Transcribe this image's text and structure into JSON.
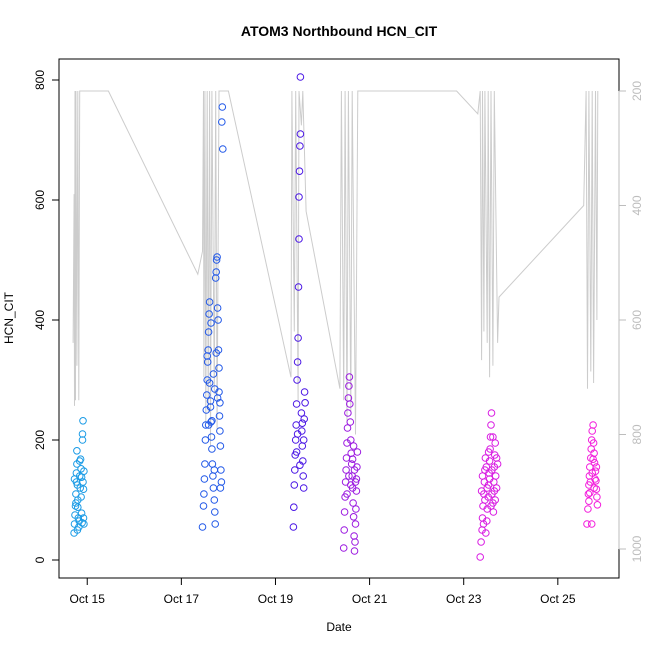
{
  "chart_data": {
    "type": "scatter",
    "title": "ATOM3 Northbound HCN_CIT",
    "xlabel": "Date",
    "ylabel": "HCN_CIT",
    "x_unit": "day-of-October-2017",
    "xlim": [
      14.4,
      26.3
    ],
    "ylim": [
      0,
      800
    ],
    "x_ticks": [
      15,
      17,
      19,
      21,
      23,
      25
    ],
    "x_tick_labels": [
      "Oct 15",
      "Oct 17",
      "Oct 19",
      "Oct 21",
      "Oct 23",
      "Oct 25"
    ],
    "y_ticks": [
      0,
      200,
      400,
      600,
      800
    ],
    "y_tick_labels": [
      "0",
      "200",
      "400",
      "600",
      "800"
    ],
    "y2_ticks": [
      200,
      400,
      600,
      800,
      1000
    ],
    "y2_tick_labels": [
      "200",
      "400",
      "600",
      "800",
      "1000"
    ],
    "y2_reversed": true,
    "y2_axis_color": "#bdbdbd",
    "grid": false,
    "point_style": "open-circle",
    "series": [
      {
        "color": "#1a9be6",
        "points": [
          [
            14.72,
            45
          ],
          [
            14.73,
            60
          ],
          [
            14.74,
            75
          ],
          [
            14.75,
            90
          ],
          [
            14.76,
            110
          ],
          [
            14.77,
            130
          ],
          [
            14.77,
            145
          ],
          [
            14.78,
            160
          ],
          [
            14.78,
            182
          ],
          [
            14.79,
            125
          ],
          [
            14.8,
            100
          ],
          [
            14.8,
            88
          ],
          [
            14.81,
            70
          ],
          [
            14.82,
            55
          ],
          [
            14.83,
            65
          ],
          [
            14.84,
            140
          ],
          [
            14.85,
            120
          ],
          [
            14.86,
            168
          ],
          [
            14.87,
            152
          ],
          [
            14.88,
            138
          ],
          [
            14.88,
            78
          ],
          [
            14.89,
            62
          ],
          [
            14.9,
            200
          ],
          [
            14.9,
            210
          ],
          [
            14.91,
            232
          ],
          [
            14.91,
            130
          ],
          [
            14.92,
            118
          ],
          [
            14.92,
            70
          ],
          [
            14.93,
            60
          ],
          [
            14.93,
            148
          ],
          [
            14.73,
            135
          ],
          [
            14.76,
            95
          ],
          [
            14.79,
            50
          ],
          [
            14.84,
            165
          ],
          [
            14.87,
            105
          ]
        ]
      },
      {
        "color": "#2158e8",
        "points": [
          [
            17.45,
            55
          ],
          [
            17.47,
            90
          ],
          [
            17.48,
            110
          ],
          [
            17.49,
            135
          ],
          [
            17.5,
            160
          ],
          [
            17.51,
            200
          ],
          [
            17.52,
            225
          ],
          [
            17.53,
            250
          ],
          [
            17.54,
            275
          ],
          [
            17.55,
            300
          ],
          [
            17.56,
            330
          ],
          [
            17.57,
            350
          ],
          [
            17.58,
            380
          ],
          [
            17.59,
            410
          ],
          [
            17.6,
            430
          ],
          [
            17.62,
            255
          ],
          [
            17.63,
            230
          ],
          [
            17.64,
            205
          ],
          [
            17.65,
            185
          ],
          [
            17.66,
            160
          ],
          [
            17.67,
            140
          ],
          [
            17.68,
            120
          ],
          [
            17.7,
            100
          ],
          [
            17.71,
            80
          ],
          [
            17.72,
            60
          ],
          [
            17.73,
            470
          ],
          [
            17.74,
            480
          ],
          [
            17.75,
            500
          ],
          [
            17.76,
            505
          ],
          [
            17.77,
            420
          ],
          [
            17.78,
            400
          ],
          [
            17.79,
            350
          ],
          [
            17.8,
            320
          ],
          [
            17.8,
            280
          ],
          [
            17.81,
            240
          ],
          [
            17.82,
            215
          ],
          [
            17.83,
            190
          ],
          [
            17.84,
            150
          ],
          [
            17.85,
            130
          ],
          [
            17.86,
            730
          ],
          [
            17.87,
            755
          ],
          [
            17.88,
            685
          ],
          [
            17.6,
            295
          ],
          [
            17.62,
            265
          ],
          [
            17.65,
            232
          ],
          [
            17.68,
            310
          ],
          [
            17.71,
            285
          ],
          [
            17.74,
            345
          ],
          [
            17.77,
            270
          ],
          [
            17.82,
            262
          ],
          [
            17.55,
            340
          ],
          [
            17.58,
            225
          ],
          [
            17.63,
            395
          ],
          [
            17.7,
            150
          ],
          [
            17.83,
            120
          ]
        ]
      },
      {
        "color": "#4a16e5",
        "points": [
          [
            19.38,
            55
          ],
          [
            19.39,
            88
          ],
          [
            19.4,
            125
          ],
          [
            19.41,
            150
          ],
          [
            19.42,
            175
          ],
          [
            19.43,
            200
          ],
          [
            19.44,
            225
          ],
          [
            19.45,
            260
          ],
          [
            19.46,
            300
          ],
          [
            19.47,
            330
          ],
          [
            19.48,
            370
          ],
          [
            19.49,
            455
          ],
          [
            19.5,
            535
          ],
          [
            19.5,
            605
          ],
          [
            19.51,
            648
          ],
          [
            19.52,
            690
          ],
          [
            19.53,
            710
          ],
          [
            19.53,
            805
          ],
          [
            19.55,
            245
          ],
          [
            19.56,
            215
          ],
          [
            19.57,
            190
          ],
          [
            19.58,
            165
          ],
          [
            19.59,
            140
          ],
          [
            19.6,
            120
          ],
          [
            19.61,
            235
          ],
          [
            19.62,
            280
          ],
          [
            19.63,
            262
          ],
          [
            19.45,
            180
          ],
          [
            19.47,
            210
          ],
          [
            19.52,
            158
          ],
          [
            19.57,
            228
          ],
          [
            19.6,
            200
          ]
        ]
      },
      {
        "color": "#9b19e0",
        "points": [
          [
            20.45,
            20
          ],
          [
            20.46,
            50
          ],
          [
            20.47,
            80
          ],
          [
            20.48,
            105
          ],
          [
            20.49,
            130
          ],
          [
            20.5,
            150
          ],
          [
            20.51,
            170
          ],
          [
            20.52,
            195
          ],
          [
            20.53,
            220
          ],
          [
            20.54,
            245
          ],
          [
            20.55,
            270
          ],
          [
            20.56,
            290
          ],
          [
            20.57,
            305
          ],
          [
            20.58,
            260
          ],
          [
            20.59,
            230
          ],
          [
            20.6,
            200
          ],
          [
            20.61,
            178
          ],
          [
            20.62,
            160
          ],
          [
            20.63,
            140
          ],
          [
            20.64,
            120
          ],
          [
            20.65,
            95
          ],
          [
            20.66,
            72
          ],
          [
            20.67,
            40
          ],
          [
            20.68,
            15
          ],
          [
            20.69,
            30
          ],
          [
            20.7,
            60
          ],
          [
            20.71,
            85
          ],
          [
            20.72,
            135
          ],
          [
            20.73,
            155
          ],
          [
            20.74,
            180
          ],
          [
            20.52,
            110
          ],
          [
            20.56,
            140
          ],
          [
            20.6,
            125
          ],
          [
            20.64,
            168
          ],
          [
            20.68,
            150
          ],
          [
            20.7,
            130
          ],
          [
            20.72,
            115
          ],
          [
            20.66,
            190
          ]
        ]
      },
      {
        "color": "#d81ae2",
        "points": [
          [
            23.35,
            5
          ],
          [
            23.37,
            30
          ],
          [
            23.39,
            50
          ],
          [
            23.4,
            70
          ],
          [
            23.41,
            90
          ],
          [
            23.43,
            110
          ],
          [
            23.44,
            130
          ],
          [
            23.45,
            150
          ],
          [
            23.46,
            170
          ],
          [
            23.47,
            45
          ],
          [
            23.49,
            65
          ],
          [
            23.5,
            85
          ],
          [
            23.52,
            105
          ],
          [
            23.53,
            125
          ],
          [
            23.54,
            145
          ],
          [
            23.55,
            165
          ],
          [
            23.56,
            185
          ],
          [
            23.57,
            205
          ],
          [
            23.58,
            225
          ],
          [
            23.59,
            245
          ],
          [
            23.6,
            110
          ],
          [
            23.62,
            95
          ],
          [
            23.63,
            80
          ],
          [
            23.64,
            130
          ],
          [
            23.65,
            155
          ],
          [
            23.66,
            175
          ],
          [
            23.67,
            195
          ],
          [
            23.68,
            140
          ],
          [
            23.7,
            120
          ],
          [
            23.72,
            160
          ],
          [
            23.4,
            140
          ],
          [
            23.45,
            100
          ],
          [
            23.5,
            120
          ],
          [
            23.55,
            135
          ],
          [
            23.6,
            150
          ],
          [
            23.65,
            115
          ],
          [
            23.7,
            170
          ],
          [
            23.42,
            60
          ],
          [
            23.48,
            155
          ],
          [
            23.58,
            90
          ],
          [
            23.62,
            205
          ],
          [
            23.38,
            115
          ],
          [
            23.53,
            180
          ],
          [
            23.67,
            100
          ]
        ]
      },
      {
        "color": "#f31ddc",
        "points": [
          [
            25.62,
            60
          ],
          [
            25.64,
            85
          ],
          [
            25.65,
            110
          ],
          [
            25.66,
            125
          ],
          [
            25.67,
            140
          ],
          [
            25.68,
            155
          ],
          [
            25.7,
            170
          ],
          [
            25.71,
            185
          ],
          [
            25.72,
            200
          ],
          [
            25.73,
            215
          ],
          [
            25.75,
            225
          ],
          [
            25.76,
            195
          ],
          [
            25.77,
            178
          ],
          [
            25.78,
            162
          ],
          [
            25.8,
            148
          ],
          [
            25.81,
            132
          ],
          [
            25.82,
            118
          ],
          [
            25.83,
            105
          ],
          [
            25.84,
            92
          ],
          [
            25.69,
            130
          ],
          [
            25.73,
            145
          ],
          [
            25.77,
            120
          ],
          [
            25.79,
            135
          ],
          [
            25.66,
            98
          ],
          [
            25.72,
            60
          ],
          [
            25.82,
            155
          ],
          [
            25.68,
            112
          ],
          [
            25.75,
            168
          ]
        ]
      }
    ],
    "altitude_trace": {
      "color": "#cccccc",
      "points": [
        [
          14.7,
          640
        ],
        [
          14.72,
          380
        ],
        [
          14.73,
          750
        ],
        [
          14.74,
          200
        ],
        [
          14.75,
          740
        ],
        [
          14.76,
          200
        ],
        [
          14.78,
          680
        ],
        [
          14.8,
          200
        ],
        [
          14.82,
          740
        ],
        [
          14.84,
          200
        ],
        [
          14.9,
          200
        ],
        [
          15.45,
          200
        ],
        [
          17.35,
          520
        ],
        [
          17.45,
          480
        ],
        [
          17.47,
          200
        ],
        [
          17.48,
          700
        ],
        [
          17.5,
          200
        ],
        [
          17.52,
          780
        ],
        [
          17.55,
          200
        ],
        [
          17.57,
          760
        ],
        [
          17.6,
          200
        ],
        [
          17.62,
          820
        ],
        [
          17.65,
          200
        ],
        [
          17.7,
          730
        ],
        [
          17.73,
          200
        ],
        [
          17.76,
          790
        ],
        [
          17.8,
          200
        ],
        [
          18.0,
          200
        ],
        [
          19.33,
          700
        ],
        [
          19.35,
          200
        ],
        [
          19.4,
          620
        ],
        [
          19.43,
          200
        ],
        [
          19.48,
          740
        ],
        [
          19.5,
          200
        ],
        [
          19.55,
          260
        ],
        [
          19.58,
          200
        ],
        [
          19.65,
          410
        ],
        [
          20.37,
          720
        ],
        [
          20.4,
          200
        ],
        [
          20.45,
          740
        ],
        [
          20.48,
          200
        ],
        [
          20.52,
          780
        ],
        [
          20.55,
          200
        ],
        [
          20.6,
          760
        ],
        [
          20.63,
          200
        ],
        [
          20.7,
          800
        ],
        [
          20.75,
          200
        ],
        [
          20.8,
          200
        ],
        [
          22.85,
          200
        ],
        [
          23.3,
          240
        ],
        [
          23.35,
          200
        ],
        [
          23.38,
          670
        ],
        [
          23.4,
          200
        ],
        [
          23.43,
          620
        ],
        [
          23.45,
          200
        ],
        [
          23.5,
          640
        ],
        [
          23.52,
          200
        ],
        [
          23.55,
          700
        ],
        [
          23.58,
          200
        ],
        [
          23.62,
          680
        ],
        [
          23.65,
          200
        ],
        [
          23.72,
          640
        ],
        [
          23.75,
          560
        ],
        [
          25.55,
          400
        ],
        [
          25.6,
          200
        ],
        [
          25.63,
          720
        ],
        [
          25.66,
          200
        ],
        [
          25.7,
          690
        ],
        [
          25.73,
          200
        ],
        [
          25.76,
          710
        ],
        [
          25.8,
          200
        ],
        [
          25.83,
          600
        ],
        [
          25.85,
          200
        ]
      ]
    }
  }
}
